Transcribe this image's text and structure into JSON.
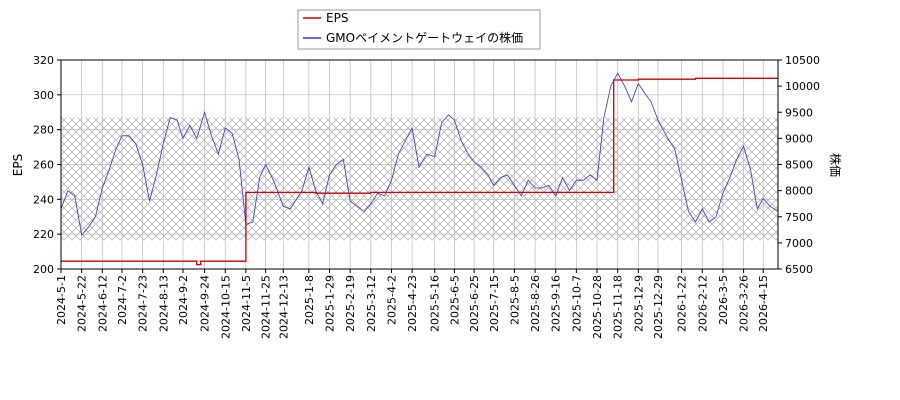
{
  "chart_data": {
    "type": "line",
    "title": "",
    "legend": {
      "placement": "top-center",
      "entries": [
        {
          "label": "EPS",
          "color": "#cc0000"
        },
        {
          "label": "GMOペイメントゲートウェイの株価",
          "color": "#3333cc"
        }
      ]
    },
    "xlabel": "",
    "ylabel_left": "EPS",
    "ylabel_right": "株価",
    "xlim": [
      "2024-05-01",
      "2026-04-30"
    ],
    "ylim_left": [
      200,
      320
    ],
    "ylim_right": [
      6500,
      10500
    ],
    "grid": true,
    "x_tick_labels": [
      "2024-5-1",
      "2024-5-22",
      "2024-6-12",
      "2024-7-2",
      "2024-7-23",
      "2024-8-13",
      "2024-9-2",
      "2024-9-24",
      "2024-10-15",
      "2024-11-5",
      "2024-11-25",
      "2024-12-13",
      "2025-1-8",
      "2025-1-29",
      "2025-2-19",
      "2025-3-12",
      "2025-4-2",
      "2025-4-23",
      "2025-5-16",
      "2025-6-5",
      "2025-6-25",
      "2025-7-15",
      "2025-8-5",
      "2025-8-26",
      "2025-9-16",
      "2025-10-7",
      "2025-10-28",
      "2025-11-18",
      "2025-12-9",
      "2025-12-29",
      "2026-1-22",
      "2026-2-12",
      "2026-3-5",
      "2026-3-26",
      "2026-4-15"
    ],
    "y_left_ticks": [
      "200",
      "220",
      "240",
      "260",
      "280",
      "300",
      "320"
    ],
    "y_right_ticks": [
      "6500",
      "7000",
      "7500",
      "8000",
      "8500",
      "9000",
      "9500",
      "10000",
      "10500"
    ],
    "hatch_band_right": [
      7050,
      9400
    ],
    "series": [
      {
        "name": "EPS",
        "axis": "left",
        "color": "#cc0000",
        "x": [
          "2024-05-01",
          "2024-09-16",
          "2024-09-16",
          "2024-09-20",
          "2024-09-20",
          "2024-11-05",
          "2024-11-05",
          "2025-01-15",
          "2025-01-15",
          "2025-03-12",
          "2025-03-12",
          "2025-05-10",
          "2025-05-10",
          "2025-08-20",
          "2025-08-20",
          "2025-11-14",
          "2025-11-14",
          "2025-12-09",
          "2025-12-09",
          "2026-02-05",
          "2026-02-05",
          "2026-04-30"
        ],
        "values": [
          204.5,
          204.5,
          202.5,
          202.5,
          204.5,
          204.5,
          244,
          244,
          243.5,
          243.5,
          244,
          244,
          244,
          244,
          244,
          244,
          308.5,
          308.5,
          309,
          309,
          309.5,
          309.5
        ]
      },
      {
        "name": "GMOペイメントゲートウェイの株価",
        "axis": "right",
        "color": "#3333cc",
        "x": [
          "2024-05-01",
          "2024-05-08",
          "2024-05-15",
          "2024-05-22",
          "2024-05-29",
          "2024-06-05",
          "2024-06-12",
          "2024-06-19",
          "2024-06-26",
          "2024-07-02",
          "2024-07-09",
          "2024-07-16",
          "2024-07-23",
          "2024-07-30",
          "2024-08-06",
          "2024-08-13",
          "2024-08-20",
          "2024-08-27",
          "2024-09-02",
          "2024-09-09",
          "2024-09-16",
          "2024-09-24",
          "2024-10-01",
          "2024-10-08",
          "2024-10-15",
          "2024-10-22",
          "2024-10-29",
          "2024-11-05",
          "2024-11-12",
          "2024-11-19",
          "2024-11-25",
          "2024-12-03",
          "2024-12-13",
          "2024-12-20",
          "2025-01-01",
          "2025-01-08",
          "2025-01-15",
          "2025-01-22",
          "2025-01-29",
          "2025-02-05",
          "2025-02-12",
          "2025-02-19",
          "2025-02-26",
          "2025-03-05",
          "2025-03-12",
          "2025-03-19",
          "2025-03-26",
          "2025-04-02",
          "2025-04-09",
          "2025-04-16",
          "2025-04-23",
          "2025-04-30",
          "2025-05-08",
          "2025-05-16",
          "2025-05-23",
          "2025-05-30",
          "2025-06-05",
          "2025-06-12",
          "2025-06-19",
          "2025-06-25",
          "2025-07-02",
          "2025-07-09",
          "2025-07-15",
          "2025-07-22",
          "2025-07-29",
          "2025-08-05",
          "2025-08-12",
          "2025-08-19",
          "2025-08-26",
          "2025-09-02",
          "2025-09-09",
          "2025-09-16",
          "2025-09-23",
          "2025-09-30",
          "2025-10-07",
          "2025-10-14",
          "2025-10-21",
          "2025-10-28",
          "2025-11-04",
          "2025-11-11",
          "2025-11-18",
          "2025-11-25",
          "2025-12-02",
          "2025-12-09",
          "2025-12-16",
          "2025-12-22",
          "2025-12-29",
          "2026-01-08",
          "2026-01-15",
          "2026-01-22",
          "2026-01-29",
          "2026-02-05",
          "2026-02-12",
          "2026-02-19",
          "2026-02-26",
          "2026-03-05",
          "2026-03-12",
          "2026-03-19",
          "2026-03-26",
          "2026-04-02",
          "2026-04-09",
          "2026-04-15",
          "2026-04-22",
          "2026-04-30"
        ],
        "values": [
          7650,
          8000,
          7900,
          7150,
          7300,
          7500,
          8050,
          8400,
          8800,
          9050,
          9050,
          8900,
          8500,
          7800,
          8300,
          8900,
          9400,
          9350,
          9000,
          9250,
          9000,
          9500,
          9050,
          8700,
          9200,
          9100,
          8600,
          7350,
          7400,
          8250,
          8500,
          8200,
          7700,
          7650,
          8000,
          8450,
          8000,
          7750,
          8300,
          8500,
          8600,
          7800,
          7700,
          7600,
          7750,
          7950,
          7900,
          8200,
          8700,
          8950,
          9200,
          8450,
          8700,
          8650,
          9300,
          9450,
          9350,
          8950,
          8700,
          8550,
          8450,
          8300,
          8100,
          8250,
          8300,
          8100,
          7900,
          8200,
          8050,
          8050,
          8100,
          7900,
          8250,
          8000,
          8200,
          8200,
          8300,
          8200,
          9400,
          10000,
          10250,
          10000,
          9700,
          10050,
          9850,
          9700,
          9350,
          9000,
          8800,
          8200,
          7600,
          7400,
          7650,
          7400,
          7500,
          7950,
          8250,
          8600,
          8850,
          8400,
          7650,
          7850,
          7700,
          7600
        ]
      }
    ]
  }
}
